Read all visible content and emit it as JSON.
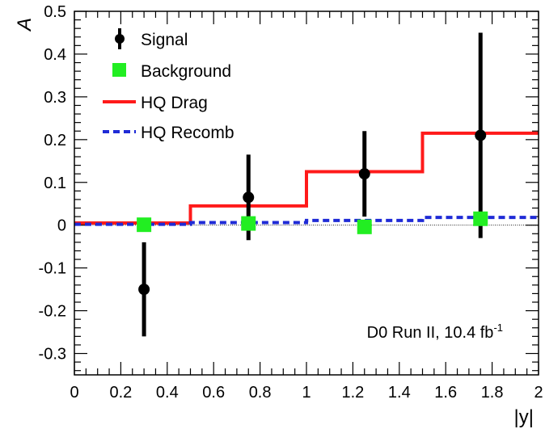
{
  "chart_data": {
    "type": "scatter",
    "xlabel": "|y|",
    "ylabel": "A",
    "xlim": [
      0,
      2
    ],
    "ylim": [
      -0.35,
      0.5
    ],
    "x_ticks": [
      {
        "value": 0,
        "label": "0"
      },
      {
        "value": 0.2,
        "label": "0.2"
      },
      {
        "value": 0.4,
        "label": "0.4"
      },
      {
        "value": 0.6,
        "label": "0.6"
      },
      {
        "value": 0.8,
        "label": "0.8"
      },
      {
        "value": 1,
        "label": "1"
      },
      {
        "value": 1.2,
        "label": "1.2"
      },
      {
        "value": 1.4,
        "label": "1.4"
      },
      {
        "value": 1.6,
        "label": "1.6"
      },
      {
        "value": 1.8,
        "label": "1.8"
      },
      {
        "value": 2,
        "label": "2"
      }
    ],
    "y_ticks": [
      {
        "value": -0.3,
        "label": "-0.3"
      },
      {
        "value": -0.2,
        "label": "-0.2"
      },
      {
        "value": -0.1,
        "label": "-0.1"
      },
      {
        "value": 0,
        "label": "0"
      },
      {
        "value": 0.1,
        "label": "0.1"
      },
      {
        "value": 0.2,
        "label": "0.2"
      },
      {
        "value": 0.3,
        "label": "0.3"
      },
      {
        "value": 0.4,
        "label": "0.4"
      },
      {
        "value": 0.5,
        "label": "0.5"
      }
    ],
    "legend_position": "top-left",
    "annotation": {
      "text": "D0 Run II, 10.4 fb",
      "superscript": "-1"
    },
    "series": [
      {
        "name": "Signal",
        "kind": "points-with-errors",
        "color": "#000000",
        "points": [
          {
            "x": 0.3,
            "y": -0.15,
            "err_low": 0.11,
            "err_high": 0.11
          },
          {
            "x": 0.75,
            "y": 0.065,
            "err_low": 0.1,
            "err_high": 0.1
          },
          {
            "x": 1.25,
            "y": 0.12,
            "err_low": 0.1,
            "err_high": 0.1
          },
          {
            "x": 1.75,
            "y": 0.21,
            "err_low": 0.24,
            "err_high": 0.24
          }
        ]
      },
      {
        "name": "Background",
        "kind": "square-points",
        "color": "#22ee22",
        "points": [
          {
            "x": 0.3,
            "y": 0.001
          },
          {
            "x": 0.75,
            "y": 0.004
          },
          {
            "x": 1.25,
            "y": -0.004
          },
          {
            "x": 1.75,
            "y": 0.015
          }
        ]
      },
      {
        "name": "HQ Drag",
        "kind": "step",
        "color": "#ff1a1a",
        "bins": [
          {
            "x0": 0,
            "x1": 0.5,
            "y": 0.005
          },
          {
            "x0": 0.5,
            "x1": 1.0,
            "y": 0.045
          },
          {
            "x0": 1.0,
            "x1": 1.5,
            "y": 0.125
          },
          {
            "x0": 1.5,
            "x1": 2.0,
            "y": 0.215
          }
        ]
      },
      {
        "name": "HQ Recomb",
        "kind": "step-dashed",
        "color": "#1f2bd6",
        "bins": [
          {
            "x0": 0,
            "x1": 0.5,
            "y": 0.002
          },
          {
            "x0": 0.5,
            "x1": 1.0,
            "y": 0.006
          },
          {
            "x0": 1.0,
            "x1": 1.5,
            "y": 0.011
          },
          {
            "x0": 1.5,
            "x1": 2.0,
            "y": 0.018
          }
        ]
      }
    ]
  }
}
